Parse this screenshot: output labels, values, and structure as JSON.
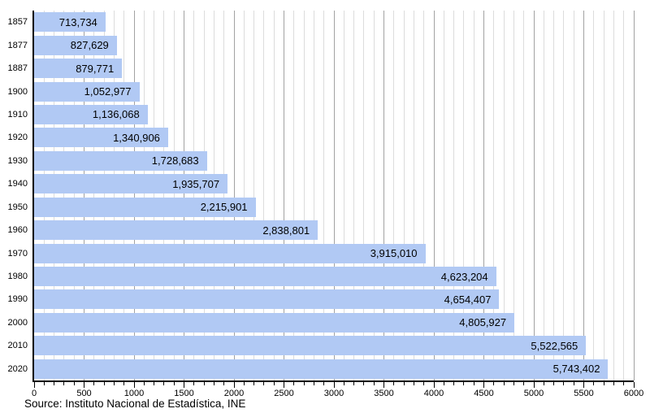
{
  "chart_data": {
    "type": "bar",
    "orientation": "horizontal",
    "title": "",
    "categories": [
      "1857",
      "1877",
      "1887",
      "1900",
      "1910",
      "1920",
      "1930",
      "1940",
      "1950",
      "1960",
      "1970",
      "1980",
      "1990",
      "2000",
      "2010",
      "2020"
    ],
    "values": [
      713734,
      827629,
      879771,
      1052977,
      1136068,
      1340906,
      1728683,
      1935707,
      2215901,
      2838801,
      3915010,
      4623204,
      4654407,
      4805927,
      5522565,
      5743402
    ],
    "value_labels": [
      "713,734",
      "827,629",
      "879,771",
      "1,052,977",
      "1,136,068",
      "1,340,906",
      "1,728,683",
      "1,935,707",
      "2,215,901",
      "2,838,801",
      "3,915,010",
      "4,623,204",
      "4,654,407",
      "4,805,927",
      "5,522,565",
      "5,743,402"
    ],
    "x_axis": {
      "unit_divisor": 1000,
      "min": 0,
      "max": 6000,
      "major_step": 500,
      "minor_step": 100,
      "tick_labels": [
        "0",
        "500",
        "1000",
        "1500",
        "2000",
        "2500",
        "3000",
        "3500",
        "4000",
        "4500",
        "5000",
        "5500",
        "6000"
      ]
    },
    "grid": {
      "minor_on": true,
      "major_on": true
    },
    "legend": null,
    "colors": {
      "bar_fill": "#b1c9f4",
      "grid_minor": "#dcdcdc",
      "grid_major": "#a2a2a2",
      "axis": "#000000",
      "text": "#000000"
    }
  },
  "source": {
    "label": "Source: Instituto Nacional de Estadística, INE"
  }
}
